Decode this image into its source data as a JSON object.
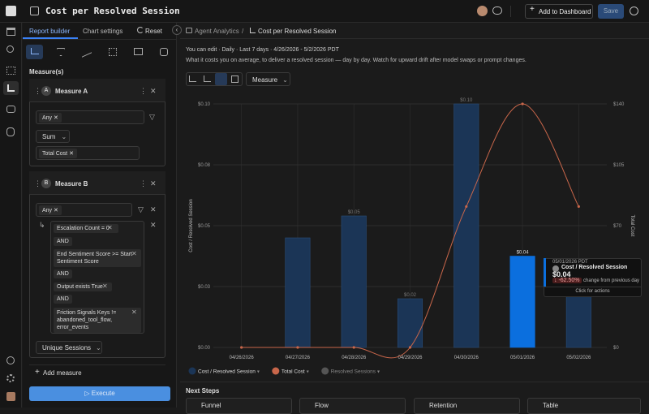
{
  "header": {
    "title": "Cost per Resolved Session",
    "add_button": "Add to Dashboard",
    "save_button": "Save"
  },
  "sidebar": {
    "tabs": [
      "Report builder",
      "Chart settings",
      "Reset"
    ],
    "section_label": "Measure(s)",
    "measure_a": {
      "badge": "A",
      "name": "Measure A",
      "filter": "Any",
      "aggregation": "Sum",
      "property": "Total Cost"
    },
    "measure_b": {
      "badge": "B",
      "name": "Measure B",
      "filter": "Any",
      "conditions": [
        "Escalation Count = 0",
        "AND",
        "End Sentiment Score >= Start Sentiment Score",
        "AND",
        "Output exists True",
        "AND",
        "Friction Signals Keys != abandoned_tool_flow, error_events"
      ],
      "aggregation": "Unique Sessions"
    },
    "add_measure": "Add measure",
    "execute": "Execute"
  },
  "breadcrumb": [
    "Agent Analytics",
    "/",
    "Cost per Resolved Session"
  ],
  "info": "You can edit · Daily · Last 7 days · 4/26/2026 - 5/2/2026 PDT",
  "description": "What it costs you on average, to deliver a resolved session — day by day. Watch for upward drift after model swaps or prompt changes.",
  "toolbar": {
    "dropdown": "Measure"
  },
  "chart_data": {
    "type": "bar-line",
    "categories": [
      "04/26/2026",
      "04/27/2026",
      "04/28/2026",
      "04/29/2026",
      "04/30/2026",
      "05/01/2026",
      "05/02/2026"
    ],
    "series": [
      {
        "name": "Cost / Resolved Session",
        "type": "bar",
        "color": "#1b3556",
        "active_color": "#0b6fde",
        "values": [
          0,
          0.045,
          0.054,
          0.02,
          0.1,
          0.0375,
          0.035
        ],
        "value_labels": [
          null,
          null,
          "$0.05",
          "$0.02",
          "$0.10",
          "$0.04",
          null
        ]
      },
      {
        "name": "Total Cost",
        "type": "line",
        "axis": "y2",
        "color": "#c8664a",
        "values": [
          0,
          0,
          0,
          0,
          81,
          140,
          81
        ]
      },
      {
        "name": "Resolved Sessions",
        "type": "hidden",
        "color": "#555555"
      }
    ],
    "ylabel": "Cost / Resolved Session",
    "y2label": "Total Cost",
    "ylim": [
      0,
      0.1
    ],
    "yticks": [
      {
        "value": 0,
        "label": "$0.00"
      },
      {
        "value": 0.025,
        "label": "$0.03"
      },
      {
        "value": 0.05,
        "label": "$0.05"
      },
      {
        "value": 0.075,
        "label": "$0.08"
      },
      {
        "value": 0.1,
        "label": "$0.10"
      }
    ],
    "y2lim": [
      0,
      140
    ],
    "y2ticks": [
      {
        "value": 0,
        "label": "$0"
      },
      {
        "value": 35,
        "label": "$35"
      },
      {
        "value": 70,
        "label": "$70"
      },
      {
        "value": 105,
        "label": "$105"
      },
      {
        "value": 140,
        "label": "$140"
      }
    ],
    "grid": true,
    "tooltip": {
      "date": "05/01/2026 PDT",
      "series": "Cost / Resolved Session",
      "value": "$0.04",
      "change": "-62.50%",
      "change_text": "change from previous day",
      "action": "Click for actions"
    }
  },
  "next_steps": {
    "title": "Next Steps",
    "cards": [
      "Funnel",
      "Flow",
      "Retention",
      "Table"
    ]
  }
}
